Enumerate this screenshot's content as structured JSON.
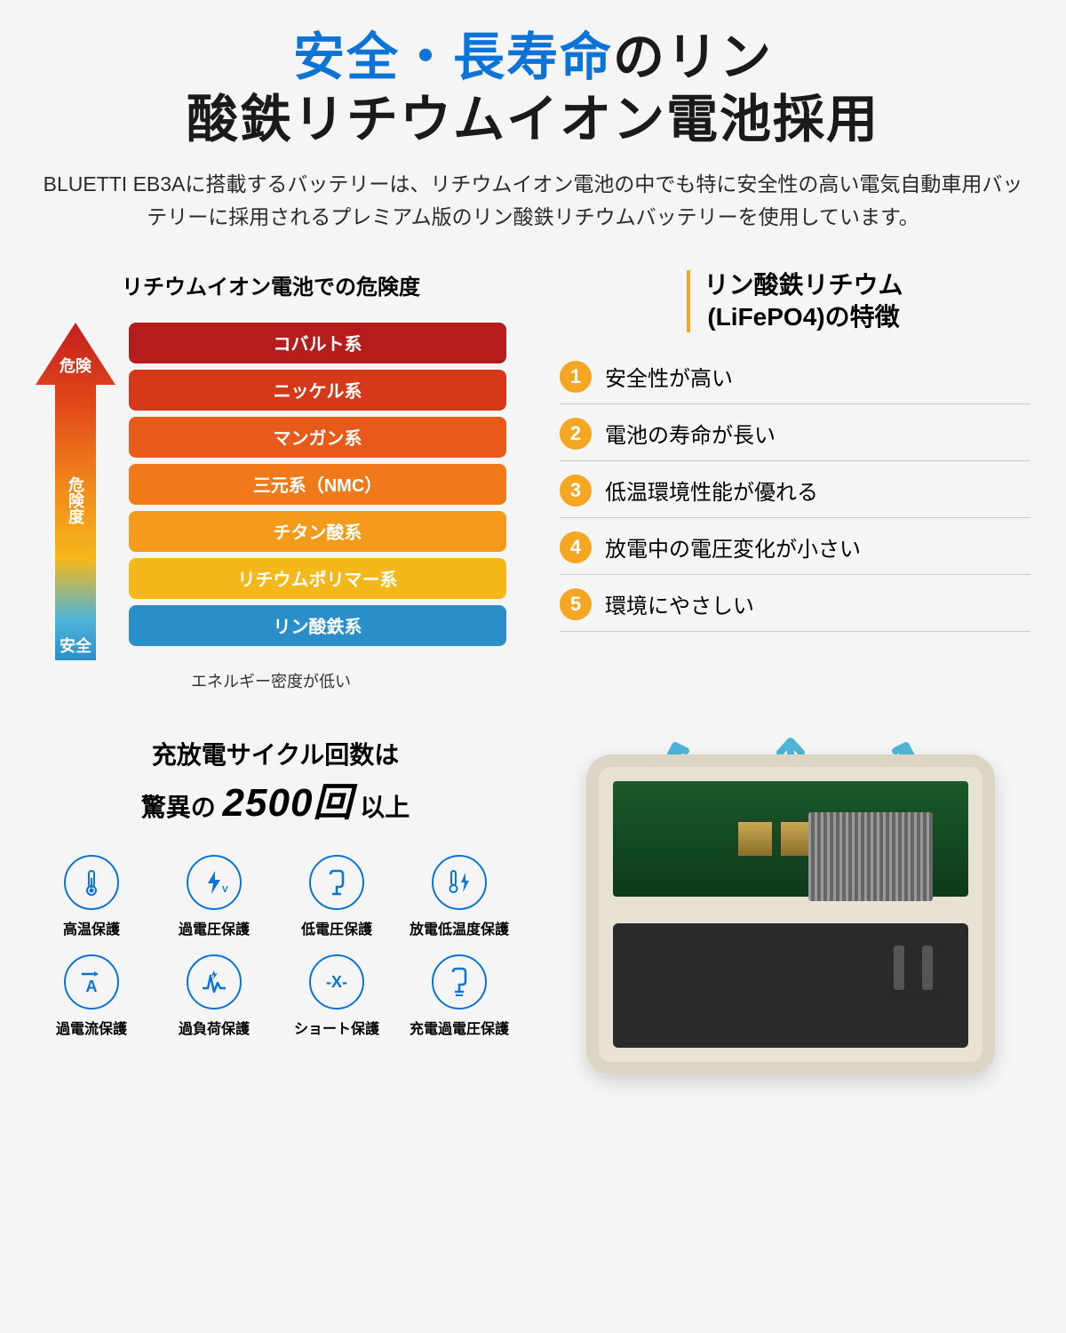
{
  "title": {
    "accent": "安全・長寿命",
    "rest1": "のリン",
    "line2": "酸鉄リチウムイオン電池採用",
    "accent_color": "#0b74d6",
    "main_color": "#1a1a1a",
    "fontsize": 58
  },
  "subtitle": "BLUETTI EB3Aに搭載するバッテリーは、リチウムイオン電池の中でも特に安全性の高い電気自動車用バッテリーに採用されるプレミアム版のリン酸鉄リチウムバッテリーを使用しています。",
  "danger_chart": {
    "title": "リチウムイオン電池での危険度",
    "arrow_top_label": "危険",
    "arrow_mid_label": "危険度",
    "arrow_bottom_label": "安全",
    "arrow_gradient": [
      "#c41e1e",
      "#e24a1a",
      "#f28c1a",
      "#f5b81a",
      "#4fb5d8",
      "#2a8fc9"
    ],
    "bars": [
      {
        "label": "コバルト系",
        "color": "#b71c1c"
      },
      {
        "label": "ニッケル系",
        "color": "#d6391a"
      },
      {
        "label": "マンガン系",
        "color": "#e85a1a"
      },
      {
        "label": "三元系（NMC）",
        "color": "#f07a1a"
      },
      {
        "label": "チタン酸系",
        "color": "#f59a1a"
      },
      {
        "label": "リチウムポリマー系",
        "color": "#f5b81a"
      },
      {
        "label": "リン酸鉄系",
        "color": "#2a8fc9"
      }
    ],
    "density_note": "エネルギー密度が低い"
  },
  "features": {
    "title_line1": "リン酸鉄リチウム",
    "title_line2": "(LiFePO4)の特徴",
    "bar_color": "#f5a623",
    "num_bg": "#f5a623",
    "items": [
      {
        "n": "1",
        "text": "安全性が高い"
      },
      {
        "n": "2",
        "text": "電池の寿命が長い"
      },
      {
        "n": "3",
        "text": "低温環境性能が優れる"
      },
      {
        "n": "4",
        "text": "放電中の電圧変化が小さい"
      },
      {
        "n": "5",
        "text": "環境にやさしい"
      }
    ]
  },
  "cycle": {
    "line1": "充放電サイクル回数は",
    "prefix": "驚異の",
    "big": "2500回",
    "suffix": "以上",
    "icons": [
      {
        "name": "thermometer-icon",
        "label": "高温保護"
      },
      {
        "name": "lightning-v-icon",
        "label": "過電圧保護"
      },
      {
        "name": "low-voltage-icon",
        "label": "低電圧保護"
      },
      {
        "name": "temp-lightning-icon",
        "label": "放電低温度保護"
      },
      {
        "name": "current-a-icon",
        "label": "過電流保護"
      },
      {
        "name": "overload-icon",
        "label": "過負荷保護"
      },
      {
        "name": "short-x-icon",
        "label": "ショート保護"
      },
      {
        "name": "charge-ov-icon",
        "label": "充電過電圧保護"
      }
    ],
    "icon_border_color": "#0b74d6"
  },
  "product": {
    "shell_color": "#e8e2d5",
    "pcb_color": "#1a5a2a",
    "airflow_color": "#4fb5d8"
  }
}
